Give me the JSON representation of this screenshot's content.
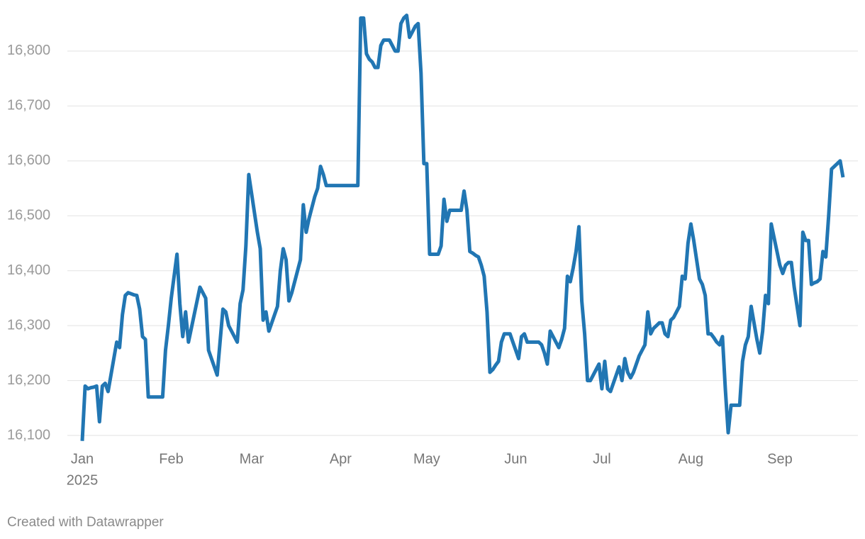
{
  "chart_data": {
    "type": "line",
    "categories": [
      "Jan",
      null,
      null,
      null,
      null,
      null,
      null,
      null,
      null,
      null,
      null,
      null,
      null,
      null,
      null,
      null,
      null,
      null,
      null,
      null,
      null,
      null,
      null,
      null,
      null,
      null,
      null,
      null,
      null,
      null,
      null,
      "Feb",
      null,
      null,
      null,
      null,
      null,
      null,
      null,
      null,
      null,
      null,
      null,
      null,
      null,
      null,
      null,
      null,
      null,
      null,
      null,
      null,
      null,
      null,
      null,
      null,
      null,
      null,
      null,
      "Mar",
      null,
      null,
      null,
      null,
      null,
      null,
      null,
      null,
      null,
      null,
      null,
      null,
      null,
      null,
      null,
      null,
      null,
      null,
      null,
      null,
      null,
      null,
      null,
      null,
      null,
      null,
      null,
      null,
      null,
      null,
      "Apr",
      null,
      null,
      null,
      null,
      null,
      null,
      null,
      null,
      null,
      null,
      null,
      null,
      null,
      null,
      null,
      null,
      null,
      null,
      null,
      null,
      null,
      null,
      null,
      null,
      null,
      null,
      null,
      null,
      null,
      "May",
      null,
      null,
      null,
      null,
      null,
      null,
      null,
      null,
      null,
      null,
      null,
      null,
      null,
      null,
      null,
      null,
      null,
      null,
      null,
      null,
      null,
      null,
      null,
      null,
      null,
      null,
      null,
      null,
      null,
      null,
      "Jun",
      null,
      null,
      null,
      null,
      null,
      null,
      null,
      null,
      null,
      null,
      null,
      null,
      null,
      null,
      null,
      null,
      null,
      null,
      null,
      null,
      null,
      null,
      null,
      null,
      null,
      null,
      null,
      null,
      null,
      "Jul",
      null,
      null,
      null,
      null,
      null,
      null,
      null,
      null,
      null,
      null,
      null,
      null,
      null,
      null,
      null,
      null,
      null,
      null,
      null,
      null,
      null,
      null,
      null,
      null,
      null,
      null,
      null,
      null,
      null,
      null,
      "Aug",
      null,
      null,
      null,
      null,
      null,
      null,
      null,
      null,
      null,
      null,
      null,
      null,
      null,
      null,
      null,
      null,
      null,
      null,
      null,
      null,
      null,
      null,
      null,
      null,
      null,
      null,
      null,
      null,
      null,
      null,
      "Sep",
      null,
      null,
      null,
      null,
      null,
      null,
      null,
      null,
      null,
      null,
      null,
      null,
      null,
      null,
      null,
      null,
      null,
      null,
      null,
      null,
      null,
      null
    ],
    "year_label": "2025",
    "values": [
      16090,
      16190,
      16185,
      16187,
      16188,
      16190,
      16125,
      16190,
      16195,
      16180,
      16210,
      16240,
      16270,
      16260,
      16320,
      16355,
      16360,
      16358,
      16356,
      16355,
      16330,
      16280,
      16275,
      16170,
      16170,
      16170,
      16170,
      16170,
      16170,
      16255,
      16300,
      16350,
      16390,
      16430,
      16340,
      16280,
      16325,
      16270,
      16295,
      16320,
      16345,
      16370,
      16360,
      16350,
      16255,
      16240,
      16225,
      16210,
      16270,
      16330,
      16325,
      16300,
      16290,
      16280,
      16270,
      16340,
      16365,
      16445,
      16575,
      16540,
      16505,
      16470,
      16440,
      16310,
      16325,
      16290,
      16305,
      16320,
      16335,
      16400,
      16440,
      16420,
      16345,
      16360,
      16380,
      16400,
      16420,
      16520,
      16470,
      16495,
      16515,
      16535,
      16550,
      16590,
      16575,
      16555,
      16555,
      16555,
      16555,
      16555,
      16555,
      16555,
      16555,
      16555,
      16555,
      16555,
      16555,
      16860,
      16860,
      16795,
      16785,
      16780,
      16770,
      16770,
      16810,
      16820,
      16820,
      16820,
      16810,
      16800,
      16800,
      16850,
      16860,
      16865,
      16825,
      16835,
      16845,
      16850,
      16760,
      16595,
      16595,
      16430,
      16430,
      16430,
      16430,
      16445,
      16530,
      16490,
      16510,
      16510,
      16510,
      16510,
      16510,
      16545,
      16510,
      16435,
      16432,
      16428,
      16425,
      16410,
      16390,
      16325,
      16215,
      16220,
      16228,
      16235,
      16270,
      16285,
      16285,
      16285,
      16270,
      16255,
      16240,
      16280,
      16285,
      16270,
      16270,
      16270,
      16270,
      16270,
      16265,
      16250,
      16230,
      16290,
      16280,
      16270,
      16260,
      16275,
      16295,
      16390,
      16380,
      16405,
      16435,
      16480,
      16345,
      16285,
      16200,
      16200,
      16210,
      16220,
      16230,
      16185,
      16235,
      16185,
      16180,
      16195,
      16210,
      16225,
      16200,
      16240,
      16215,
      16205,
      16215,
      16230,
      16245,
      16255,
      16265,
      16325,
      16285,
      16295,
      16300,
      16305,
      16305,
      16285,
      16280,
      16310,
      16315,
      16325,
      16335,
      16390,
      16385,
      16450,
      16485,
      16455,
      16420,
      16385,
      16375,
      16355,
      16285,
      16285,
      16278,
      16270,
      16265,
      16280,
      16185,
      16105,
      16155,
      16155,
      16155,
      16155,
      16235,
      16265,
      16280,
      16335,
      16305,
      16275,
      16250,
      16290,
      16355,
      16340,
      16485,
      16460,
      16435,
      16410,
      16395,
      16410,
      16415,
      16415,
      16370,
      16335,
      16300,
      16470,
      16455,
      16455,
      16375,
      16378,
      16380,
      16385,
      16435,
      16425,
      16500,
      16585,
      16590,
      16595,
      16600,
      16570
    ],
    "color": "#2176b3",
    "ylim": [
      16080,
      16880
    ],
    "yticks": [
      {
        "value": 16100,
        "label": "16,100"
      },
      {
        "value": 16200,
        "label": "16,200"
      },
      {
        "value": 16300,
        "label": "16,300"
      },
      {
        "value": 16400,
        "label": "16,400"
      },
      {
        "value": 16500,
        "label": "16,500"
      },
      {
        "value": 16600,
        "label": "16,600"
      },
      {
        "value": 16700,
        "label": "16,700"
      },
      {
        "value": 16800,
        "label": "16,800"
      }
    ],
    "grid": true,
    "footer": "Created with Datawrapper"
  }
}
